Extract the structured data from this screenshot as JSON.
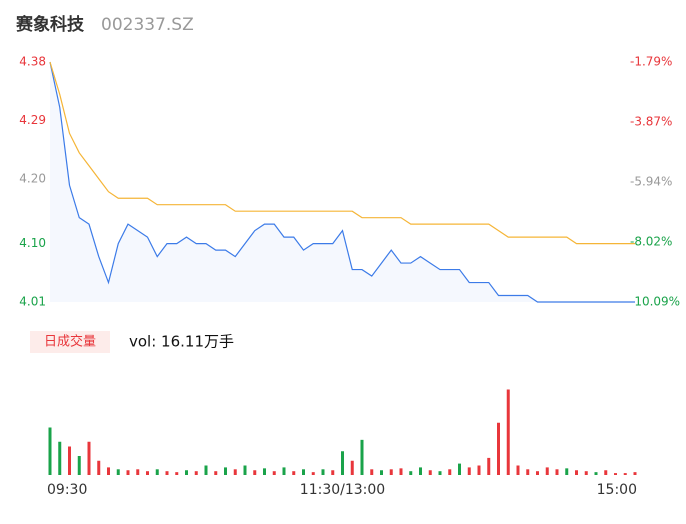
{
  "header": {
    "name": "赛象科技",
    "code": "002337.SZ"
  },
  "chart_data": [
    {
      "type": "line",
      "x": [
        0,
        4,
        8,
        12,
        16,
        20,
        24,
        28,
        32,
        36,
        40,
        44,
        48,
        52,
        56,
        60,
        64,
        68,
        72,
        76,
        80,
        84,
        88,
        92,
        96,
        100,
        104,
        108,
        112,
        116,
        120,
        124,
        128,
        132,
        136,
        140,
        144,
        148,
        152,
        156,
        160,
        164,
        168,
        172,
        176,
        180,
        184,
        188,
        192,
        196,
        200,
        204,
        208,
        212,
        216,
        220,
        224,
        228,
        232,
        236,
        240
      ],
      "xlim": [
        0,
        240
      ],
      "series": [
        {
          "name": "price",
          "color": "#3c7be8",
          "values": [
            4.38,
            4.31,
            4.19,
            4.14,
            4.13,
            4.08,
            4.04,
            4.1,
            4.13,
            4.12,
            4.11,
            4.08,
            4.1,
            4.1,
            4.11,
            4.1,
            4.1,
            4.09,
            4.09,
            4.08,
            4.1,
            4.12,
            4.13,
            4.13,
            4.11,
            4.11,
            4.09,
            4.1,
            4.1,
            4.1,
            4.12,
            4.06,
            4.06,
            4.05,
            4.07,
            4.09,
            4.07,
            4.07,
            4.08,
            4.07,
            4.06,
            4.06,
            4.06,
            4.04,
            4.04,
            4.04,
            4.02,
            4.02,
            4.02,
            4.02,
            4.01,
            4.01,
            4.01,
            4.01,
            4.01,
            4.01,
            4.01,
            4.01,
            4.01,
            4.01,
            4.01
          ]
        },
        {
          "name": "average",
          "color": "#f5b537",
          "values": [
            4.38,
            4.33,
            4.27,
            4.24,
            4.22,
            4.2,
            4.18,
            4.17,
            4.17,
            4.17,
            4.17,
            4.16,
            4.16,
            4.16,
            4.16,
            4.16,
            4.16,
            4.16,
            4.16,
            4.15,
            4.15,
            4.15,
            4.15,
            4.15,
            4.15,
            4.15,
            4.15,
            4.15,
            4.15,
            4.15,
            4.15,
            4.15,
            4.14,
            4.14,
            4.14,
            4.14,
            4.14,
            4.13,
            4.13,
            4.13,
            4.13,
            4.13,
            4.13,
            4.13,
            4.13,
            4.13,
            4.12,
            4.11,
            4.11,
            4.11,
            4.11,
            4.11,
            4.11,
            4.11,
            4.1,
            4.1,
            4.1,
            4.1,
            4.1,
            4.1,
            4.1
          ]
        }
      ],
      "ylim": [
        4.01,
        4.38
      ],
      "yticks": [
        4.38,
        4.29,
        {
          "value": 4.2,
          "label": "4.20"
        },
        {
          "value": 4.1,
          "label": "4.10"
        },
        4.01
      ],
      "ytick_colors": [
        "#e8363b",
        "#e8363b",
        "#999999",
        "#1aa34a",
        "#1aa34a"
      ],
      "y2lim": [
        -10.09,
        -1.79
      ],
      "y2ticks": [
        {
          "value": -1.79,
          "label": "-1.79%"
        },
        {
          "value": -3.87,
          "label": "-3.87%"
        },
        {
          "value": -5.94,
          "label": "-5.94%"
        },
        {
          "value": -8.02,
          "label": "-8.02%"
        },
        {
          "value": -10.09,
          "label": "-10.09%"
        }
      ]
    },
    {
      "type": "bar",
      "tab": "日成交量",
      "title": "vol: 16.11万手",
      "x": [
        0,
        4,
        8,
        12,
        16,
        20,
        24,
        28,
        32,
        36,
        40,
        44,
        48,
        52,
        56,
        60,
        64,
        68,
        72,
        76,
        80,
        84,
        88,
        92,
        96,
        100,
        104,
        108,
        112,
        116,
        120,
        124,
        128,
        132,
        136,
        140,
        144,
        148,
        152,
        156,
        160,
        164,
        168,
        172,
        176,
        180,
        184,
        188,
        192,
        196,
        200,
        204,
        208,
        212,
        216,
        220,
        224,
        228,
        232,
        236,
        240
      ],
      "xlim": [
        0,
        240
      ],
      "xticks": [
        {
          "value": 0,
          "label": "09:30"
        },
        {
          "value": 120,
          "label": "11:30/13:00"
        },
        {
          "value": 240,
          "label": "15:00"
        }
      ],
      "values": [
        50,
        35,
        30,
        20,
        35,
        15,
        8,
        6,
        5,
        6,
        4,
        6,
        4,
        3,
        5,
        4,
        10,
        4,
        8,
        6,
        10,
        5,
        7,
        4,
        8,
        4,
        6,
        3,
        6,
        5,
        25,
        15,
        37,
        6,
        5,
        6,
        7,
        4,
        8,
        5,
        4,
        6,
        12,
        8,
        10,
        18,
        55,
        90,
        10,
        6,
        4,
        8,
        6,
        7,
        5,
        4,
        3,
        5,
        2,
        2,
        3
      ],
      "colors": [
        "#1aa34a",
        "#1aa34a",
        "#e8363b",
        "#1aa34a",
        "#e8363b",
        "#e8363b",
        "#e8363b",
        "#1aa34a",
        "#e8363b",
        "#e8363b",
        "#e8363b",
        "#1aa34a",
        "#e8363b",
        "#e8363b",
        "#1aa34a",
        "#e8363b",
        "#1aa34a",
        "#e8363b",
        "#1aa34a",
        "#e8363b",
        "#1aa34a",
        "#e8363b",
        "#1aa34a",
        "#e8363b",
        "#1aa34a",
        "#e8363b",
        "#1aa34a",
        "#e8363b",
        "#1aa34a",
        "#e8363b",
        "#1aa34a",
        "#e8363b",
        "#1aa34a",
        "#e8363b",
        "#1aa34a",
        "#e8363b",
        "#e8363b",
        "#1aa34a",
        "#1aa34a",
        "#e8363b",
        "#1aa34a",
        "#e8363b",
        "#1aa34a",
        "#e8363b",
        "#e8363b",
        "#e8363b",
        "#e8363b",
        "#e8363b",
        "#e8363b",
        "#e8363b",
        "#e8363b",
        "#e8363b",
        "#e8363b",
        "#1aa34a",
        "#e8363b",
        "#e8363b",
        "#1aa34a",
        "#e8363b",
        "#e8363b",
        "#e8363b",
        "#e8363b"
      ],
      "ylim": [
        0,
        100
      ]
    }
  ]
}
